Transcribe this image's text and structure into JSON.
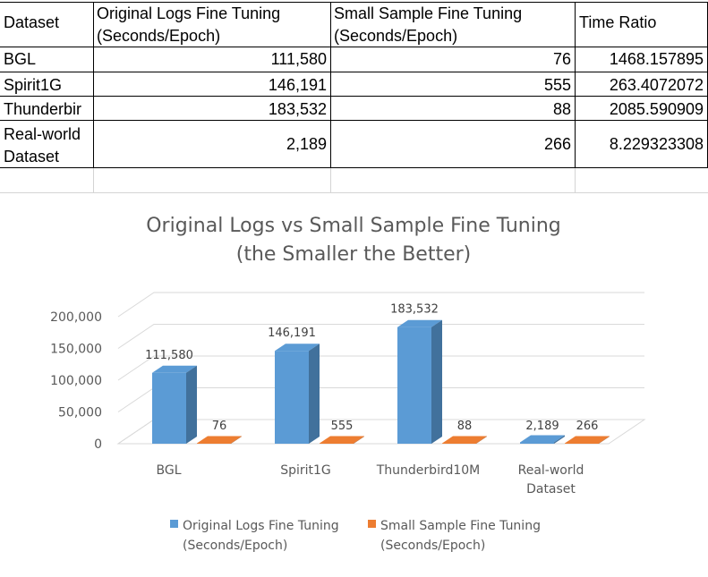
{
  "table": {
    "headers": [
      "Dataset",
      "Original Logs Fine Tuning (Seconds/Epoch)",
      "Small Sample Fine Tuning (Seconds/Epoch)",
      "Time Ratio"
    ],
    "header_lines": {
      "col2_line1": "Original Logs Fine Tuning",
      "col2_line2": "(Seconds/Epoch)",
      "col3_line1": "Small Sample Fine Tuning",
      "col3_line2": "(Seconds/Epoch)"
    },
    "rows": [
      {
        "dataset": "BGL",
        "original": "111,580",
        "small": "76",
        "ratio": "1468.157895"
      },
      {
        "dataset": "Spirit1G",
        "original": "146,191",
        "small": "555",
        "ratio": "263.4072072"
      },
      {
        "dataset": "Thunderbir",
        "original": "183,532",
        "small": "88",
        "ratio": "2085.590909"
      },
      {
        "dataset_line1": "Real-world",
        "dataset_line2": "Dataset",
        "original": "2,189",
        "small": "266",
        "ratio": "8.229323308"
      }
    ]
  },
  "chart_data": {
    "type": "bar",
    "title": "Original Logs vs Small Sample Fine Tuning",
    "subtitle": "(the Smaller the Better)",
    "categories": [
      [
        "BGL"
      ],
      [
        "Spirit1G"
      ],
      [
        "Thunderbird10M"
      ],
      [
        "Real-world",
        "Dataset"
      ]
    ],
    "series": [
      {
        "name": "Original Logs Fine Tuning (Seconds/Epoch)",
        "name_lines": [
          "Original Logs Fine Tuning",
          "(Seconds/Epoch)"
        ],
        "values": [
          111580,
          146191,
          183532,
          2189
        ],
        "labels": [
          "111,580",
          "146,191",
          "183,532",
          "2,189"
        ],
        "color": "#5b9bd5",
        "side_color": "#41719c"
      },
      {
        "name": "Small Sample Fine Tuning (Seconds/Epoch)",
        "name_lines": [
          "Small Sample Fine Tuning",
          "(Seconds/Epoch)"
        ],
        "values": [
          76,
          555,
          88,
          266
        ],
        "labels": [
          "76",
          "555",
          "88",
          "266"
        ],
        "color": "#ed7d31",
        "side_color": "#ae5a21"
      }
    ],
    "ylim": [
      0,
      200000
    ],
    "yticks": [
      "0",
      "50,000",
      "100,000",
      "150,000",
      "200,000"
    ],
    "grid": true,
    "legend": "bottom",
    "style": "3d-column"
  }
}
